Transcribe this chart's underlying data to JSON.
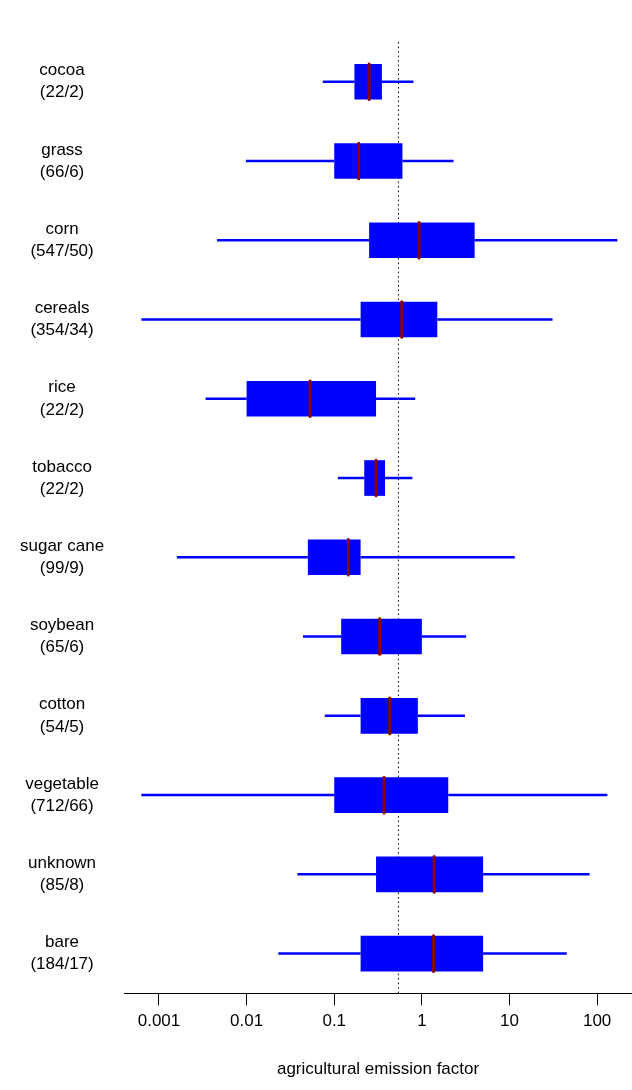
{
  "chart_data": {
    "type": "box",
    "orientation": "horizontal",
    "log": "x",
    "xlabel": "agricultural emission factor",
    "categories": [
      "cocoa\n(22/2)",
      "grass\n(66/6)",
      "corn\n(547/50)",
      "cereals\n(354/34)",
      "rice\n(22/2)",
      "tobacco\n(22/2)",
      "sugar cane\n(99/9)",
      "soybean\n(65/6)",
      "cotton\n(54/5)",
      "vegetable\n(712/66)",
      "unknown\n(85/8)",
      "bare\n(184/17)"
    ],
    "series": [
      {
        "color": "#0000ff",
        "boxes": [
          {
            "low": 0.074,
            "q1": 0.17,
            "median": 0.25,
            "q3": 0.35,
            "high": 0.8
          },
          {
            "low": 0.0098,
            "q1": 0.1,
            "median": 0.19,
            "q3": 0.6,
            "high": 2.3
          },
          {
            "low": 0.0046,
            "q1": 0.25,
            "median": 0.93,
            "q3": 4,
            "high": 170
          },
          {
            "low": 0.00063,
            "q1": 0.2,
            "median": 0.59,
            "q3": 1.5,
            "high": 31
          },
          {
            "low": 0.0034,
            "q1": 0.01,
            "median": 0.053,
            "q3": 0.3,
            "high": 0.84
          },
          {
            "low": 0.11,
            "q1": 0.22,
            "median": 0.3,
            "q3": 0.38,
            "high": 0.78
          },
          {
            "low": 0.0016,
            "q1": 0.05,
            "median": 0.145,
            "q3": 0.2,
            "high": 11.5
          },
          {
            "low": 0.044,
            "q1": 0.12,
            "median": 0.33,
            "q3": 1,
            "high": 3.2
          },
          {
            "low": 0.078,
            "q1": 0.2,
            "median": 0.43,
            "q3": 0.9,
            "high": 3.1
          },
          {
            "low": 0.00063,
            "q1": 0.1,
            "median": 0.37,
            "q3": 2,
            "high": 131
          },
          {
            "low": 0.038,
            "q1": 0.3,
            "median": 1.38,
            "q3": 5,
            "high": 82
          },
          {
            "low": 0.023,
            "q1": 0.2,
            "median": 1.36,
            "q3": 5,
            "high": 45
          }
        ]
      }
    ],
    "xlim": [
      0.0004,
      250
    ],
    "xticks": [
      0.001,
      0.01,
      0.1,
      1,
      10,
      100
    ],
    "ref_lines": [
      {
        "axis": "x",
        "value": 0.54,
        "color": "#000000",
        "line_style": "dotted"
      }
    ],
    "grid": false,
    "legend": false
  }
}
